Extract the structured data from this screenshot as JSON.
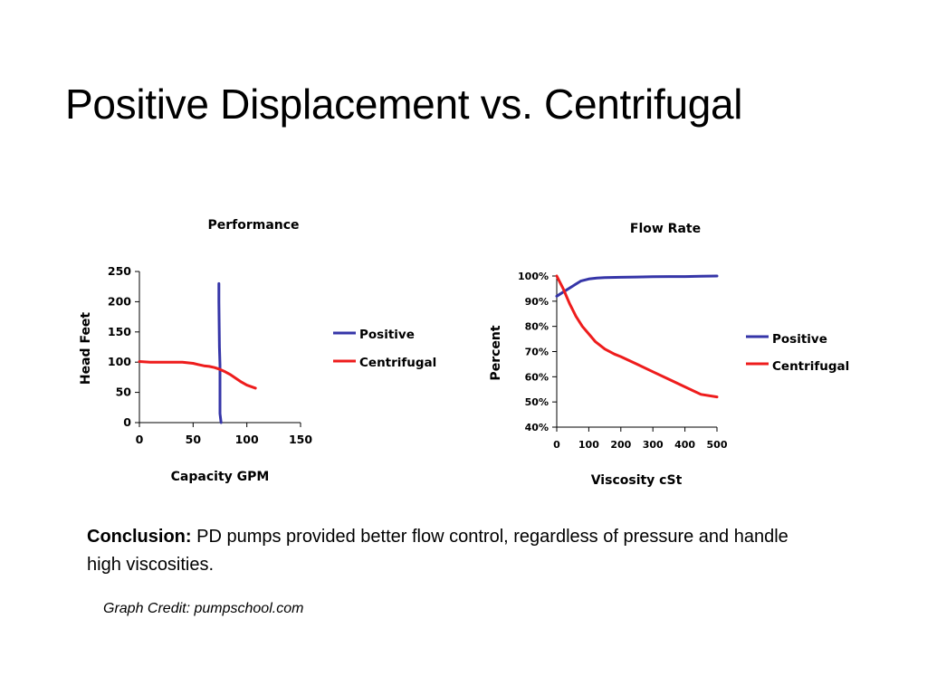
{
  "slide": {
    "title": "Positive Displacement vs. Centrifugal",
    "conclusion_label": "Conclusion:",
    "conclusion_text": " PD pumps provided better flow control, regardless of pressure and handle high viscosities.",
    "credit": "Graph Credit: pumpschool.com"
  },
  "colors": {
    "positive": "#3535a8",
    "centrifugal": "#ee1c1c"
  },
  "chart_data": [
    {
      "type": "line",
      "title": "Performance",
      "xlabel": "Capacity GPM",
      "ylabel": "Head Feet",
      "xlim": [
        0,
        150
      ],
      "ylim": [
        0,
        250
      ],
      "xticks": [
        "0",
        "50",
        "100",
        "150"
      ],
      "yticks": [
        "0",
        "50",
        "100",
        "150",
        "200",
        "250"
      ],
      "legend": "right",
      "series": [
        {
          "name": "Positive",
          "color": "#3535a8",
          "x": [
            74,
            74,
            74.5,
            75,
            75,
            75,
            76
          ],
          "y": [
            230,
            200,
            125,
            95,
            70,
            15,
            0
          ]
        },
        {
          "name": "Centrifugal",
          "color": "#ee1c1c",
          "x": [
            0,
            10,
            20,
            30,
            40,
            50,
            55,
            60,
            65,
            70,
            75,
            80,
            85,
            90,
            95,
            100,
            108
          ],
          "y": [
            101,
            100,
            100,
            100,
            100,
            98,
            96,
            94,
            93,
            91,
            88,
            84,
            79,
            73,
            67,
            62,
            57
          ]
        }
      ]
    },
    {
      "type": "line",
      "title": "Flow Rate",
      "xlabel": "Viscosity cSt",
      "ylabel": "Percent",
      "xlim": [
        0,
        500
      ],
      "ylim": [
        40,
        100
      ],
      "xticks": [
        "0",
        "100",
        "200",
        "300",
        "400",
        "500"
      ],
      "yticks": [
        "40%",
        "50%",
        "60%",
        "70%",
        "80%",
        "90%",
        "100%"
      ],
      "legend": "right",
      "series": [
        {
          "name": "Positive",
          "color": "#3535a8",
          "x": [
            0,
            25,
            50,
            75,
            100,
            125,
            150,
            200,
            250,
            300,
            350,
            400,
            450,
            500
          ],
          "y": [
            92,
            94,
            96,
            98,
            98.8,
            99.2,
            99.4,
            99.5,
            99.6,
            99.7,
            99.8,
            99.8,
            99.9,
            100
          ]
        },
        {
          "name": "Centrifugal",
          "color": "#ee1c1c",
          "x": [
            0,
            20,
            40,
            60,
            80,
            100,
            120,
            150,
            180,
            200,
            250,
            300,
            350,
            400,
            450,
            500
          ],
          "y": [
            100,
            95,
            89,
            84,
            80,
            77,
            74,
            71,
            69,
            68,
            65,
            62,
            59,
            56,
            53,
            52
          ]
        }
      ]
    }
  ]
}
